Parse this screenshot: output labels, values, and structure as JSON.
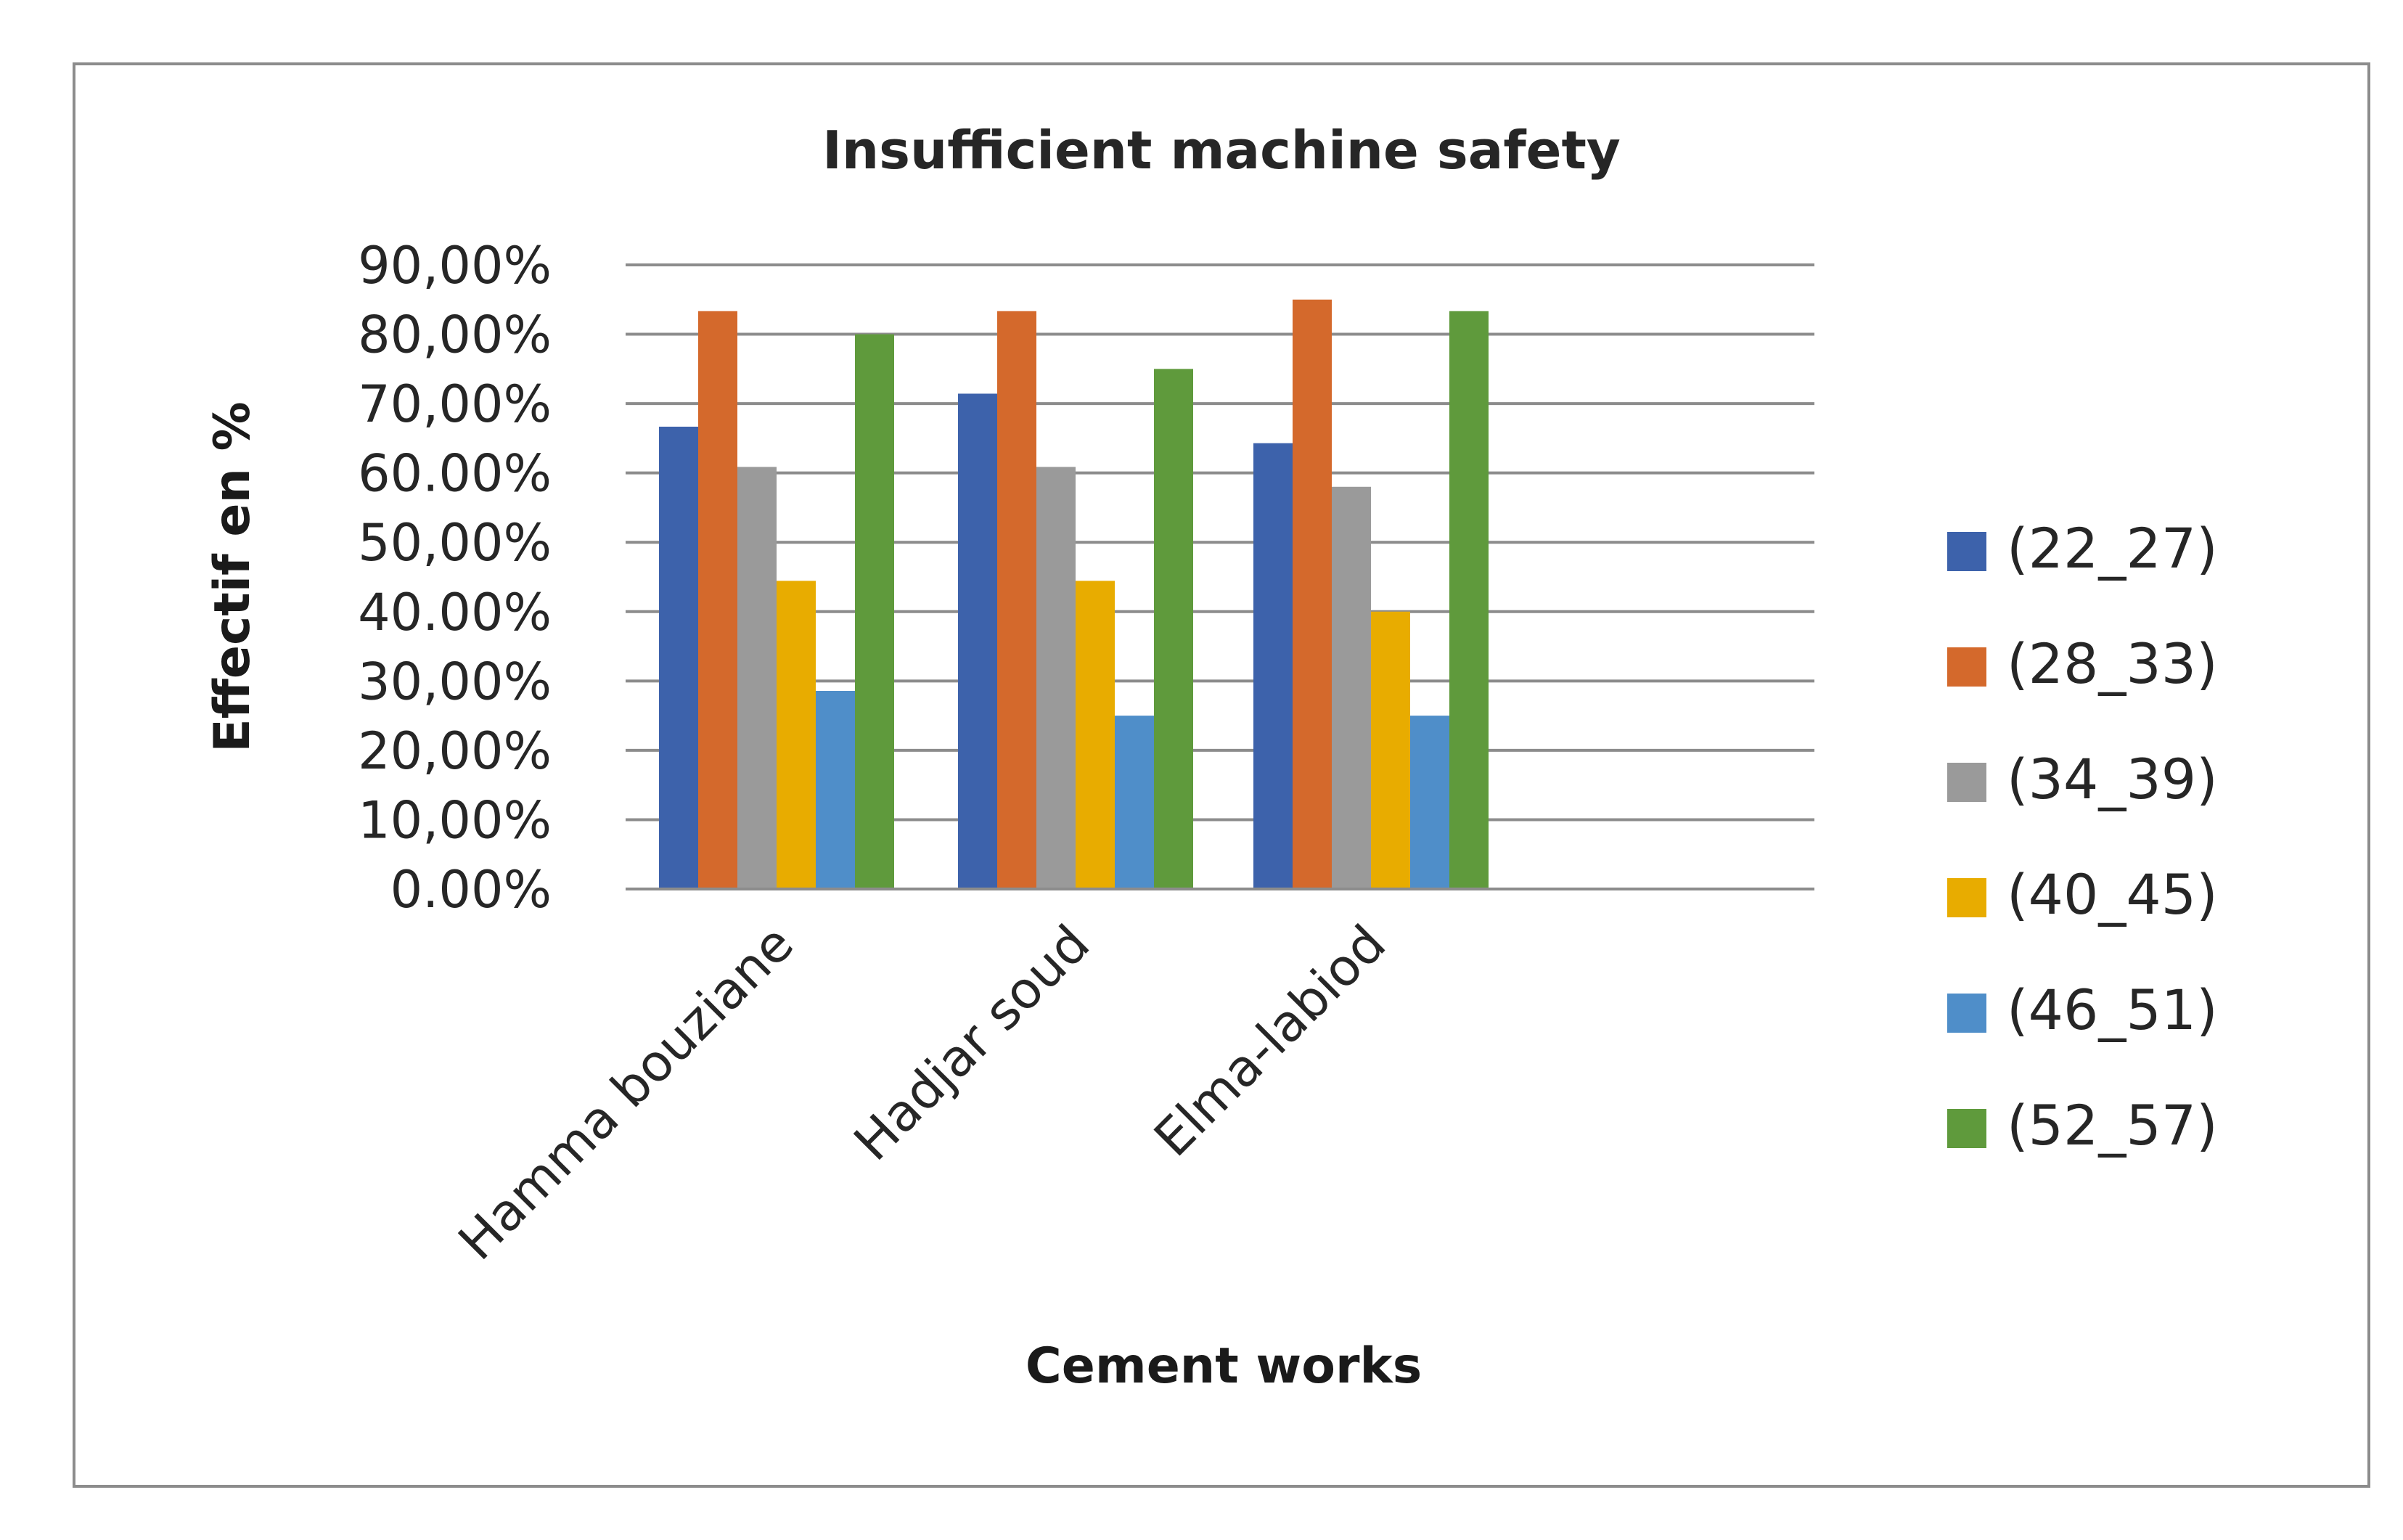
{
  "chart_data": {
    "type": "bar",
    "title": "Insufficient machine safety",
    "xlabel": "Cement works",
    "ylabel": "Effectif en %",
    "categories": [
      "Hamma bouziane",
      "Hadjar soud",
      "Elma-labiod"
    ],
    "series": [
      {
        "name": "(22_27)",
        "color": "#3d62ab",
        "values": [
          66.67,
          71.43,
          64.29
        ]
      },
      {
        "name": "(28_33)",
        "color": "#d4692c",
        "values": [
          83.33,
          83.33,
          85.0
        ]
      },
      {
        "name": "(34_39)",
        "color": "#9a9a9a",
        "values": [
          60.87,
          60.87,
          58.0
        ]
      },
      {
        "name": "(40_45)",
        "color": "#e8ac00",
        "values": [
          44.44,
          44.44,
          40.0
        ]
      },
      {
        "name": "(46_51)",
        "color": "#4f8ec9",
        "values": [
          28.57,
          25.0,
          25.0
        ]
      },
      {
        "name": "(52_57)",
        "color": "#5f9a3c",
        "values": [
          80.0,
          75.0,
          83.33
        ]
      }
    ],
    "ylim": [
      0,
      90
    ],
    "yticks": [
      "0.00%",
      "10,00%",
      "20,00%",
      "30,00%",
      "40.00%",
      "50,00%",
      "60.00%",
      "70,00%",
      "80,00%",
      "90,00%"
    ],
    "grid": true,
    "legend_position": "right"
  }
}
